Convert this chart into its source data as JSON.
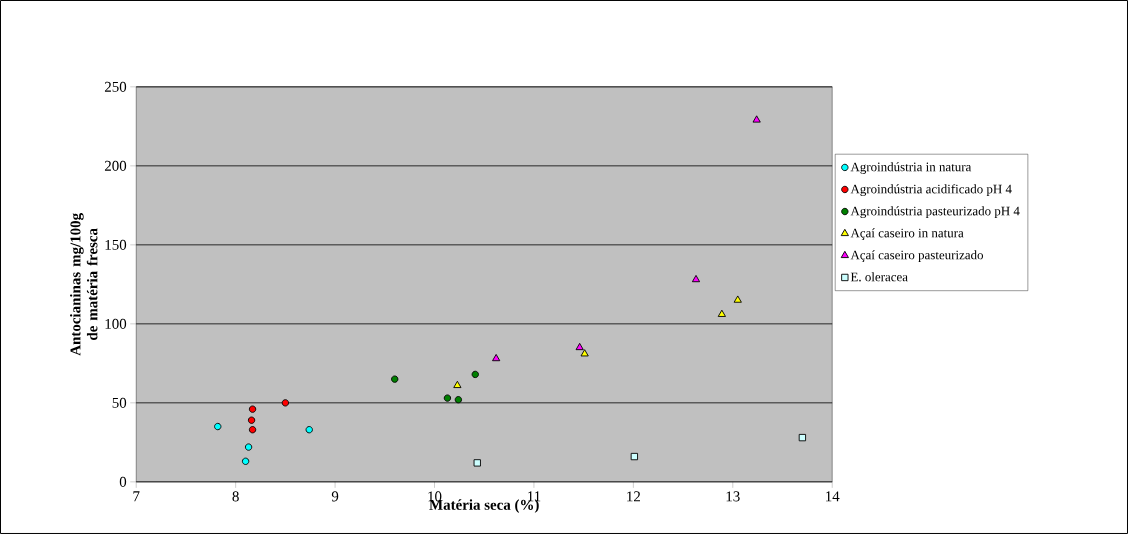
{
  "chart_data": {
    "type": "scatter",
    "xlabel": "Matéria seca (%)",
    "ylabel": "Antocianinas mg/100g de matéria fresca",
    "xlim": [
      7,
      14
    ],
    "xticks": [
      7,
      8,
      9,
      10,
      11,
      12,
      13,
      14
    ],
    "ylim": [
      0,
      250
    ],
    "yticks": [
      0,
      50,
      100,
      150,
      200,
      250
    ],
    "grid": "y",
    "legend": "right",
    "series": [
      {
        "name": "Agroindústria in natura",
        "color": "#00ffff",
        "marker": "circle",
        "x": [
          7.82,
          8.13,
          8.1,
          8.74
        ],
        "values": [
          35,
          22,
          13,
          33
        ]
      },
      {
        "name": "Agroindústria acidificado pH 4",
        "color": "#ff0000",
        "marker": "circle",
        "x": [
          8.17,
          8.16,
          8.17,
          8.5
        ],
        "values": [
          46,
          39,
          33,
          50
        ]
      },
      {
        "name": "Agroindústria pasteurizado pH 4",
        "color": "#008000",
        "marker": "circle",
        "x": [
          9.6,
          10.13,
          10.24,
          10.41
        ],
        "values": [
          65,
          53,
          52,
          68
        ]
      },
      {
        "name": "Açaí caseiro in natura",
        "color": "#ffff00",
        "marker": "triangle",
        "x": [
          10.23,
          11.51,
          12.89,
          13.05
        ],
        "values": [
          61,
          81,
          106,
          115
        ]
      },
      {
        "name": "Açaí caseiro pasteurizado",
        "color": "#ff00ff",
        "marker": "triangle",
        "x": [
          10.62,
          11.46,
          12.63,
          13.24
        ],
        "values": [
          78,
          85,
          128,
          229
        ]
      },
      {
        "name": "E. oleracea",
        "color": "#ccffff",
        "marker": "square",
        "x": [
          10.43,
          12.01,
          13.7
        ],
        "values": [
          12,
          16,
          28
        ]
      }
    ]
  }
}
